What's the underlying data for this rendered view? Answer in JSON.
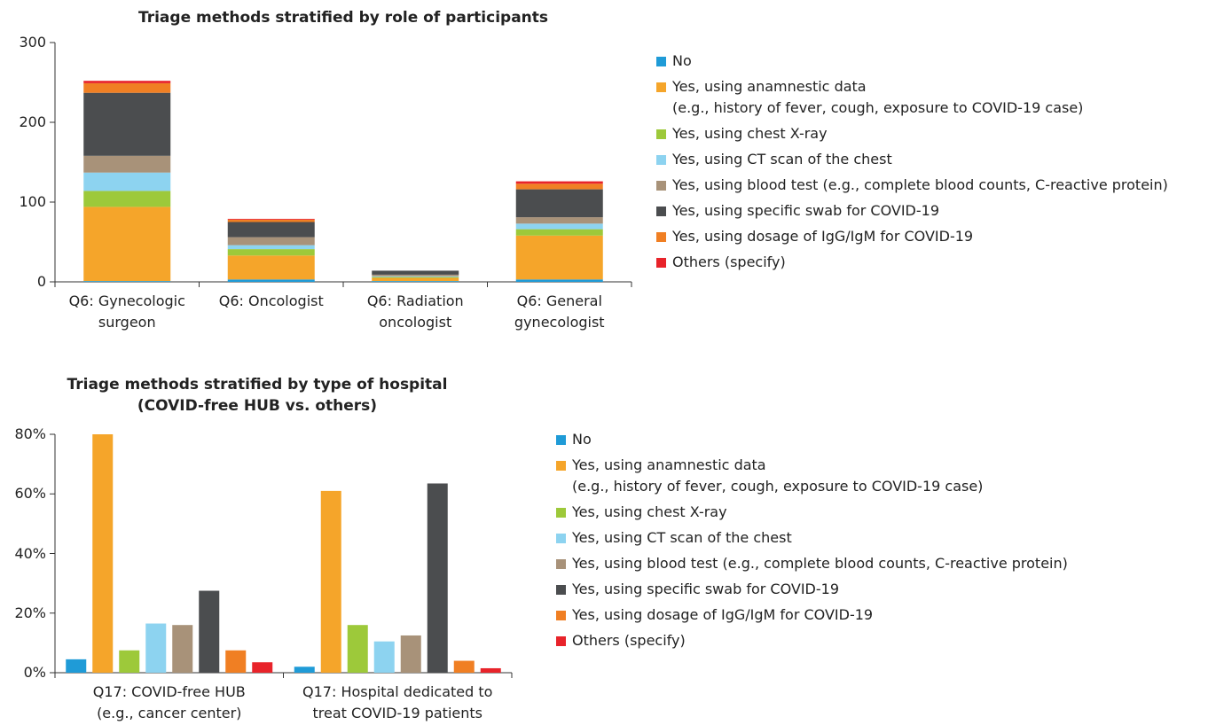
{
  "chart_data": [
    {
      "type": "bar",
      "stacked": true,
      "title": "Triage methods stratified by role of participants",
      "categories": [
        "Q6: Gynecologic\nsurgeon",
        "Q6: Oncologist",
        "Q6: Radiation\noncologist",
        "Q6: General\ngynecologist"
      ],
      "series": [
        {
          "name": "No",
          "color": "#1f9bd7",
          "values": [
            1,
            3,
            1,
            3
          ]
        },
        {
          "name": "Yes, using anamnestic data\n(e.g., history of fever, cough, exposure to COVID-19 case)",
          "color": "#f5a52a",
          "values": [
            93,
            30,
            4,
            55
          ]
        },
        {
          "name": "Yes, using chest X-ray",
          "color": "#9dc93a",
          "values": [
            20,
            8,
            1,
            8
          ]
        },
        {
          "name": "Yes, using CT scan of the chest",
          "color": "#8dd3f0",
          "values": [
            23,
            5,
            1,
            7
          ]
        },
        {
          "name": "Yes, using blood test (e.g., complete blood counts, C-reactive protein)",
          "color": "#a89279",
          "values": [
            21,
            10,
            2,
            8
          ]
        },
        {
          "name": "Yes, using specific swab for COVID-19",
          "color": "#4b4d4f",
          "values": [
            79,
            19,
            5,
            35
          ]
        },
        {
          "name": "Yes, using dosage of IgG/IgM for COVID-19",
          "color": "#f07f23",
          "values": [
            12,
            3,
            0,
            7
          ]
        },
        {
          "name": "Others (specify)",
          "color": "#e8232a",
          "values": [
            3,
            1,
            0,
            3
          ]
        }
      ],
      "ylim": [
        0,
        300
      ],
      "yticks": [
        0,
        100,
        200,
        300
      ],
      "grid": false,
      "legend": "right"
    },
    {
      "type": "bar",
      "stacked": false,
      "title": "Triage methods stratified by type of hospital\n(COVID-free HUB vs. others)",
      "categories": [
        "Q17: COVID-free HUB\n(e.g., cancer center)",
        "Q17: Hospital dedicated to\ntreat COVID-19 patients"
      ],
      "series": [
        {
          "name": "No",
          "color": "#1f9bd7",
          "values": [
            4.5,
            2
          ]
        },
        {
          "name": "Yes, using anamnestic data\n(e.g., history of fever, cough, exposure to COVID-19 case)",
          "color": "#f5a52a",
          "values": [
            80,
            61
          ]
        },
        {
          "name": "Yes, using chest X-ray",
          "color": "#9dc93a",
          "values": [
            7.5,
            16
          ]
        },
        {
          "name": "Yes, using CT scan of the chest",
          "color": "#8dd3f0",
          "values": [
            16.5,
            10.5
          ]
        },
        {
          "name": "Yes, using blood test (e.g., complete blood counts, C-reactive protein)",
          "color": "#a89279",
          "values": [
            16,
            12.5
          ]
        },
        {
          "name": "Yes, using specific swab for COVID-19",
          "color": "#4b4d4f",
          "values": [
            27.5,
            63.5
          ]
        },
        {
          "name": "Yes, using dosage of IgG/IgM for COVID-19",
          "color": "#f07f23",
          "values": [
            7.5,
            4
          ]
        },
        {
          "name": "Others (specify)",
          "color": "#e8232a",
          "values": [
            3.5,
            1.5
          ]
        }
      ],
      "ylim": [
        0,
        80
      ],
      "yticks": [
        {
          "value": 0,
          "label": "0%"
        },
        {
          "value": 20,
          "label": "20%"
        },
        {
          "value": 40,
          "label": "40%"
        },
        {
          "value": 60,
          "label": "60%"
        },
        {
          "value": 80,
          "label": "80%"
        }
      ],
      "grid": false,
      "legend": "right"
    }
  ]
}
